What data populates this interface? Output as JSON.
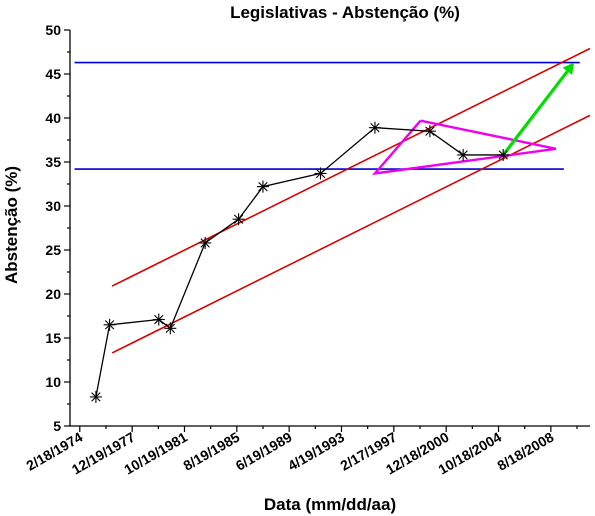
{
  "chart_data": {
    "type": "line",
    "title": "Legislativas - Abstenção (%)",
    "xlabel": "Data (mm/dd/aa)",
    "ylabel": "Abstenção (%)",
    "x_ticks": [
      "2/18/1974",
      "12/19/1977",
      "10/19/1981",
      "8/19/1985",
      "6/19/1989",
      "4/19/1993",
      "2/17/1997",
      "12/18/2000",
      "10/18/2004",
      "8/18/2008"
    ],
    "xlim": [
      "1973-06-01",
      "2011-07-01"
    ],
    "ylim": [
      5,
      50
    ],
    "y_ticks": [
      5,
      10,
      15,
      20,
      25,
      30,
      35,
      40,
      45,
      50
    ],
    "grid": false,
    "legend": "none",
    "colors": {
      "data": "#000000",
      "trend": "#dd0000",
      "reference": "#0000cc",
      "triangle": "#ee00ee",
      "arrow": "#00dd00"
    },
    "series": [
      {
        "type": "line-with-star-markers",
        "x": [
          "1975-04-25",
          "1976-04-25",
          "1979-12-02",
          "1980-10-05",
          "1983-04-25",
          "1985-10-06",
          "1987-07-19",
          "1991-10-06",
          "1995-10-01",
          "1999-10-10",
          "2002-03-17",
          "2005-02-20"
        ],
        "y": [
          8.3,
          16.5,
          17.1,
          16.1,
          25.8,
          28.5,
          32.2,
          33.7,
          38.9,
          38.5,
          35.8,
          35.8
        ]
      },
      {
        "type": "trend-line",
        "x": [
          "1976-07-01",
          "2011-07-01"
        ],
        "y": [
          20.9,
          47.9
        ]
      },
      {
        "type": "trend-line",
        "x": [
          "1976-07-01",
          "2011-07-01"
        ],
        "y": [
          13.3,
          40.3
        ]
      },
      {
        "type": "reference-line",
        "x": [
          "1973-10-01",
          "2010-10-01"
        ],
        "y": [
          46.3,
          46.3
        ]
      },
      {
        "type": "reference-line",
        "x": [
          "1973-10-01",
          "2009-08-01"
        ],
        "y": [
          34.2,
          34.2
        ]
      },
      {
        "type": "triangle",
        "x": [
          "1999-02-01",
          "2009-01-01",
          "1995-10-01",
          "1999-02-01"
        ],
        "y": [
          39.7,
          36.5,
          33.7,
          39.7
        ]
      },
      {
        "type": "arrow",
        "x": [
          "2005-02-20",
          "2010-05-01"
        ],
        "y": [
          35.8,
          46.3
        ]
      }
    ]
  }
}
